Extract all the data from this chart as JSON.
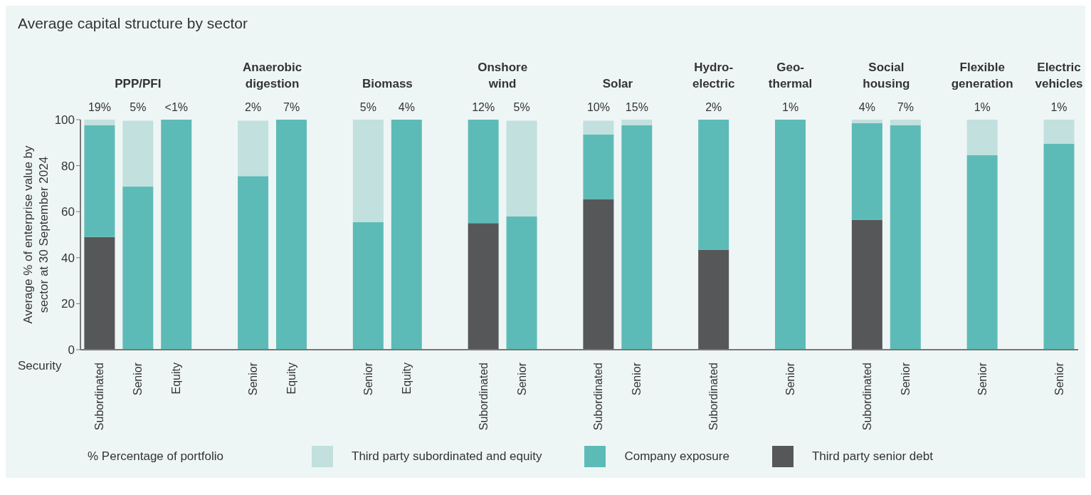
{
  "chart_data": {
    "type": "bar",
    "title": "Average capital structure by sector",
    "ylabel": "Average % of enterprise value by sector at 30 September 2024",
    "xlabel": "Security",
    "categories": [
      "Subordinated",
      "Senior",
      "Equity",
      null,
      "Senior",
      "Equity",
      null,
      "Senior",
      "Equity",
      null,
      "Subordinated",
      "Senior",
      null,
      "Subordinated",
      "Senior",
      null,
      "Subordinated",
      null,
      "Senior",
      null,
      "Subordinated",
      "Senior",
      null,
      "Senior",
      null,
      "Senior"
    ],
    "series": [
      {
        "name": "Third party senior debt",
        "color": "#565759",
        "values": [
          49,
          0,
          0,
          null,
          0,
          0,
          null,
          0,
          0,
          null,
          55,
          0,
          null,
          65.5,
          0,
          null,
          43.5,
          null,
          0,
          null,
          56.5,
          0,
          null,
          0,
          null,
          0
        ]
      },
      {
        "name": "Company exposure",
        "color": "#5dbbb7",
        "values": [
          48.5,
          71,
          100,
          null,
          75.5,
          100,
          null,
          55.5,
          100,
          null,
          45,
          58,
          null,
          28,
          97.5,
          null,
          56.5,
          null,
          100,
          null,
          42,
          97.5,
          null,
          84.5,
          null,
          89.5
        ]
      },
      {
        "name": "Third party subordinated and equity",
        "color": "#c1e0de",
        "values": [
          2.5,
          28.5,
          0,
          null,
          24,
          0,
          null,
          44.5,
          0,
          null,
          0,
          41.5,
          null,
          6,
          2.5,
          null,
          0,
          null,
          0,
          null,
          1.5,
          2.5,
          null,
          15.5,
          null,
          10.5
        ]
      }
    ],
    "stacked": true,
    "ylim": [
      0,
      100
    ],
    "yticks": [
      0,
      20,
      40,
      60,
      80,
      100
    ],
    "legend": "bottom",
    "annotations": [
      "% Percentage of portfolio",
      "PPP/PFI",
      "Anaerobic digestion",
      "Biomass",
      "Onshore wind",
      "Solar",
      "Hydro-electric",
      "Geo-thermal",
      "Social housing",
      "Flexible generation",
      "Electric vehicles",
      "19%",
      "5%",
      "<1%",
      "2%",
      "7%",
      "5%",
      "4%",
      "12%",
      "5%",
      "10%",
      "15%",
      "2%",
      "1%",
      "4%",
      "7%",
      "1%",
      "1%"
    ]
  }
}
